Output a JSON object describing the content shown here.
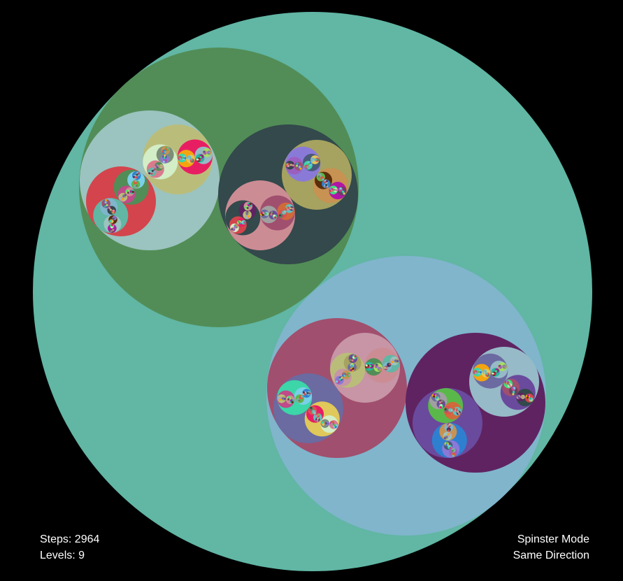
{
  "hud": {
    "steps_label": "Steps: 2964",
    "levels_label": "Levels: 9",
    "mode_label": "Spinster Mode",
    "direction_label": "Same Direction"
  },
  "colors": {
    "background": "#000000",
    "palette": [
      "#61b6a4",
      "#528d57",
      "#80b5cc",
      "#9bc3bf",
      "#33494b",
      "#a14f6e",
      "#5f2362",
      "#d4444c",
      "#babd7a",
      "#cc8c94",
      "#a6a260",
      "#c795a5",
      "#6b6aa1",
      "#6a4a9d",
      "#96bac7",
      "#f4a40f",
      "#25b89f",
      "#a4e061",
      "#b016a6",
      "#5a2d0b",
      "#3ee27d",
      "#6d3f5b",
      "#d3eec7",
      "#e81e63",
      "#7b8f78",
      "#d97a8d",
      "#8a7ad8",
      "#c79252",
      "#4a5a7a",
      "#9b5fc0",
      "#3cd6a8",
      "#e0c85a",
      "#7ad0e8",
      "#c04a8a",
      "#5ab84a",
      "#2f7fd0",
      "#d06a3a",
      "#a0a0a0",
      "#e05050",
      "#60c0c0"
    ]
  }
}
